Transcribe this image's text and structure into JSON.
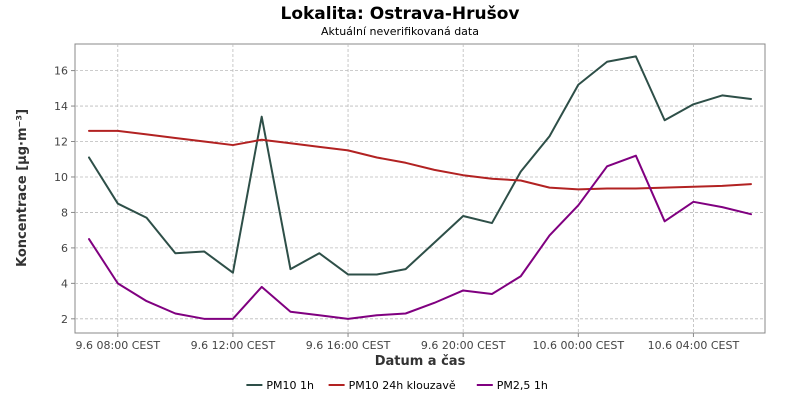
{
  "chart_data": {
    "type": "line",
    "title": "Lokalita: Ostrava-Hrušov",
    "subtitle": "Aktuální neverifikovaná data",
    "xlabel": "Datum a čas",
    "ylabel": "Koncentrace [µg·m⁻³]",
    "ylim": [
      1.2,
      17.5
    ],
    "yticks": [
      2,
      4,
      6,
      8,
      10,
      12,
      14,
      16
    ],
    "x": [
      "9.6 07:00",
      "9.6 08:00",
      "9.6 09:00",
      "9.6 10:00",
      "9.6 11:00",
      "9.6 12:00",
      "9.6 13:00",
      "9.6 14:00",
      "9.6 15:00",
      "9.6 16:00",
      "9.6 17:00",
      "9.6 18:00",
      "9.6 19:00",
      "9.6 20:00",
      "9.6 21:00",
      "9.6 22:00",
      "9.6 23:00",
      "10.6 00:00",
      "10.6 01:00",
      "10.6 02:00",
      "10.6 03:00",
      "10.6 04:00",
      "10.6 05:00",
      "10.6 06:00"
    ],
    "xticks": [
      {
        "label": "9.6 08:00 CEST",
        "index": 1
      },
      {
        "label": "9.6 12:00 CEST",
        "index": 5
      },
      {
        "label": "9.6 16:00 CEST",
        "index": 9
      },
      {
        "label": "9.6 20:00 CEST",
        "index": 13
      },
      {
        "label": "10.6 00:00 CEST",
        "index": 17
      },
      {
        "label": "10.6 04:00 CEST",
        "index": 21
      }
    ],
    "grid": true,
    "legend_position": "bottom",
    "series": [
      {
        "name": "PM10 1h",
        "color": "#2e4f48",
        "values": [
          11.1,
          8.5,
          7.7,
          5.7,
          5.8,
          4.6,
          13.4,
          4.8,
          5.7,
          4.5,
          4.5,
          4.8,
          6.3,
          7.8,
          7.4,
          10.3,
          12.3,
          15.2,
          16.5,
          16.8,
          13.2,
          14.1,
          14.6,
          14.4
        ]
      },
      {
        "name": "PM10 24h klouzavě",
        "color": "#b22222",
        "values": [
          12.6,
          12.6,
          12.4,
          12.2,
          12.0,
          11.8,
          12.1,
          11.9,
          11.7,
          11.5,
          11.1,
          10.8,
          10.4,
          10.1,
          9.9,
          9.8,
          9.4,
          9.3,
          9.35,
          9.35,
          9.4,
          9.45,
          9.5,
          9.6
        ]
      },
      {
        "name": "PM2,5 1h",
        "color": "#800080",
        "values": [
          6.5,
          4.0,
          3.0,
          2.3,
          2.0,
          2.0,
          3.8,
          2.4,
          2.2,
          2.0,
          2.2,
          2.3,
          2.9,
          3.6,
          3.4,
          4.4,
          6.7,
          8.4,
          10.6,
          11.2,
          7.5,
          8.6,
          8.3,
          7.9
        ]
      }
    ]
  }
}
